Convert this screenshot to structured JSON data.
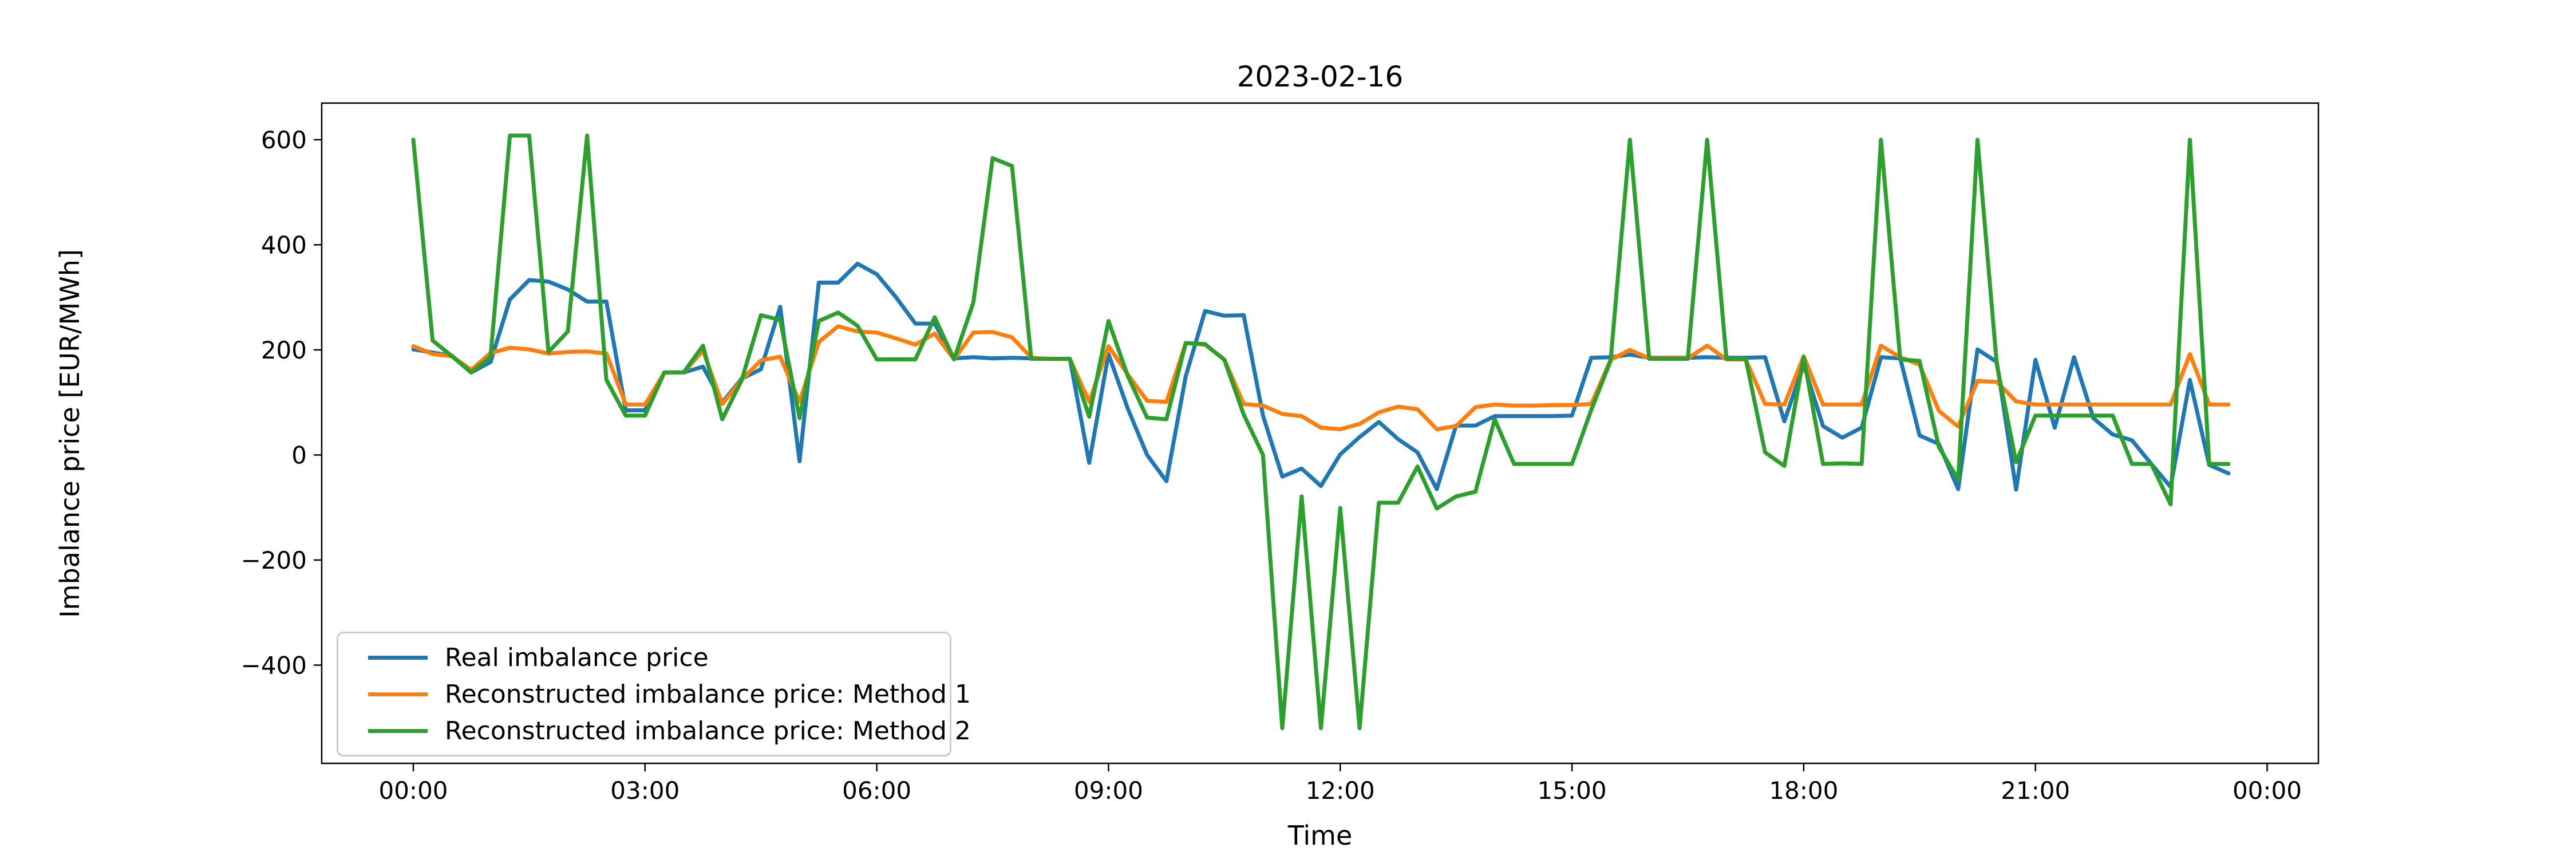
{
  "title": "2023-02-16",
  "chart_data": {
    "type": "line",
    "title": "2023-02-16",
    "xlabel": "Time",
    "ylabel": "Imbalance price [EUR/MWh]",
    "grid": false,
    "legend_position": "lower left",
    "background_color": "#ffffff",
    "x_tick_labels": [
      "00:00",
      "03:00",
      "06:00",
      "09:00",
      "12:00",
      "15:00",
      "18:00",
      "21:00",
      "00:00"
    ],
    "y_tick_values": [
      600,
      400,
      200,
      0,
      -200,
      -400
    ],
    "ylim": [
      -590,
      670
    ],
    "x": [
      "00:00",
      "00:15",
      "00:30",
      "00:45",
      "01:00",
      "01:15",
      "01:30",
      "01:45",
      "02:00",
      "02:15",
      "02:30",
      "02:45",
      "03:00",
      "03:15",
      "03:30",
      "03:45",
      "04:00",
      "04:15",
      "04:30",
      "04:45",
      "05:00",
      "05:15",
      "05:30",
      "05:45",
      "06:00",
      "06:15",
      "06:30",
      "06:45",
      "07:00",
      "07:15",
      "07:30",
      "07:45",
      "08:00",
      "08:15",
      "08:30",
      "08:45",
      "09:00",
      "09:15",
      "09:30",
      "09:45",
      "10:00",
      "10:15",
      "10:30",
      "10:45",
      "11:00",
      "11:15",
      "11:30",
      "11:45",
      "12:00",
      "12:15",
      "12:30",
      "12:45",
      "13:00",
      "13:15",
      "13:30",
      "13:45",
      "14:00",
      "14:15",
      "14:30",
      "14:45",
      "15:00",
      "15:15",
      "15:30",
      "15:45",
      "16:00",
      "16:15",
      "16:30",
      "16:45",
      "17:00",
      "17:15",
      "17:30",
      "17:45",
      "18:00",
      "18:15",
      "18:30",
      "18:45",
      "19:00",
      "19:15",
      "19:30",
      "19:45",
      "20:00",
      "20:15",
      "20:30",
      "20:45",
      "21:00",
      "21:15",
      "21:30",
      "21:45",
      "22:00",
      "22:15",
      "22:30",
      "22:45",
      "23:00",
      "23:15",
      "23:30"
    ],
    "series": [
      {
        "name": "Real imbalance price",
        "color": "#1f77b4",
        "values": [
          201,
          195,
          189,
          157,
          177,
          296,
          333,
          330,
          315,
          292,
          292,
          85,
          85,
          157,
          157,
          168,
          100,
          145,
          163,
          282,
          -12,
          328,
          328,
          364,
          344,
          300,
          250,
          250,
          184,
          186,
          184,
          185,
          184,
          183,
          183,
          -15,
          192,
          88,
          0,
          -50,
          150,
          274,
          265,
          266,
          75,
          -41,
          -26,
          -59,
          1,
          34,
          63,
          30,
          5,
          -65,
          56,
          56,
          74,
          74,
          74,
          74,
          75,
          185,
          186,
          191,
          185,
          185,
          185,
          186,
          185,
          185,
          186,
          64,
          172,
          55,
          33,
          52,
          186,
          184,
          37,
          21,
          -65,
          201,
          177,
          -66,
          181,
          52,
          186,
          70,
          39,
          28,
          -17,
          -61,
          143,
          -19,
          -35
        ]
      },
      {
        "name": "Reconstructed imbalance price: Method 1",
        "color": "#ff7f0e",
        "values": [
          207,
          192,
          188,
          162,
          194,
          204,
          201,
          193,
          196,
          197,
          193,
          96,
          96,
          157,
          157,
          199,
          97,
          143,
          180,
          187,
          101,
          215,
          245,
          235,
          233,
          222,
          210,
          231,
          182,
          233,
          234,
          224,
          185,
          183,
          183,
          101,
          207,
          153,
          103,
          101,
          213,
          210,
          182,
          97,
          94,
          78,
          74,
          52,
          49,
          59,
          81,
          92,
          87,
          49,
          55,
          91,
          96,
          94,
          94,
          95,
          95,
          97,
          181,
          200,
          184,
          184,
          184,
          208,
          182,
          182,
          97,
          96,
          188,
          96,
          96,
          96,
          208,
          186,
          172,
          84,
          54,
          141,
          139,
          102,
          96,
          96,
          96,
          96,
          96,
          96,
          96,
          96,
          192,
          96,
          96
        ]
      },
      {
        "name": "Reconstructed imbalance price: Method 2",
        "color": "#2ca02c",
        "values": [
          600,
          218,
          188,
          157,
          187,
          608,
          608,
          196,
          235,
          608,
          143,
          75,
          75,
          157,
          157,
          208,
          68,
          142,
          266,
          257,
          70,
          255,
          271,
          246,
          182,
          182,
          182,
          262,
          182,
          290,
          565,
          550,
          183,
          183,
          183,
          73,
          255,
          150,
          71,
          68,
          213,
          211,
          181,
          77,
          0,
          -520,
          -79,
          -520,
          -101,
          -520,
          -91,
          -91,
          -22,
          -102,
          -79,
          -70,
          68,
          -17,
          -17,
          -17,
          -17,
          86,
          179,
          600,
          183,
          183,
          183,
          600,
          183,
          183,
          5,
          -21,
          186,
          -17,
          -16,
          -17,
          600,
          182,
          179,
          15,
          -47,
          600,
          172,
          -14,
          75,
          75,
          75,
          75,
          75,
          -17,
          -17,
          -94,
          600,
          -17,
          -17
        ]
      }
    ]
  }
}
